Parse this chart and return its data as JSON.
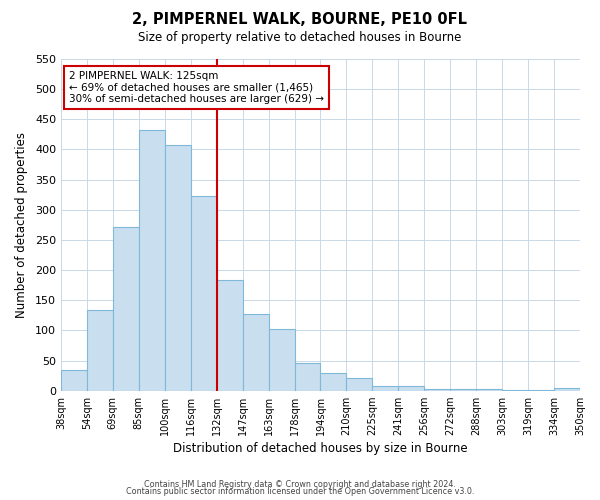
{
  "title": "2, PIMPERNEL WALK, BOURNE, PE10 0FL",
  "subtitle": "Size of property relative to detached houses in Bourne",
  "xlabel": "Distribution of detached houses by size in Bourne",
  "ylabel": "Number of detached properties",
  "bar_labels": [
    "38sqm",
    "54sqm",
    "69sqm",
    "85sqm",
    "100sqm",
    "116sqm",
    "132sqm",
    "147sqm",
    "163sqm",
    "178sqm",
    "194sqm",
    "210sqm",
    "225sqm",
    "241sqm",
    "256sqm",
    "272sqm",
    "288sqm",
    "303sqm",
    "319sqm",
    "334sqm",
    "350sqm"
  ],
  "bar_values": [
    35,
    133,
    272,
    433,
    407,
    323,
    183,
    127,
    103,
    46,
    30,
    21,
    8,
    7,
    3,
    3,
    2,
    1,
    1,
    5
  ],
  "bar_color": "#c9dff0",
  "bar_edge_color": "#7fb8d8",
  "vline_position": 6,
  "vline_color": "#cc0000",
  "annotation_title": "2 PIMPERNEL WALK: 125sqm",
  "annotation_line1": "← 69% of detached houses are smaller (1,465)",
  "annotation_line2": "30% of semi-detached houses are larger (629) →",
  "annotation_box_color": "#ffffff",
  "annotation_box_edge_color": "#cc0000",
  "ylim": [
    0,
    550
  ],
  "yticks": [
    0,
    50,
    100,
    150,
    200,
    250,
    300,
    350,
    400,
    450,
    500,
    550
  ],
  "footer_line1": "Contains HM Land Registry data © Crown copyright and database right 2024.",
  "footer_line2": "Contains public sector information licensed under the Open Government Licence v3.0.",
  "background_color": "#ffffff",
  "grid_color": "#c8d8e8"
}
